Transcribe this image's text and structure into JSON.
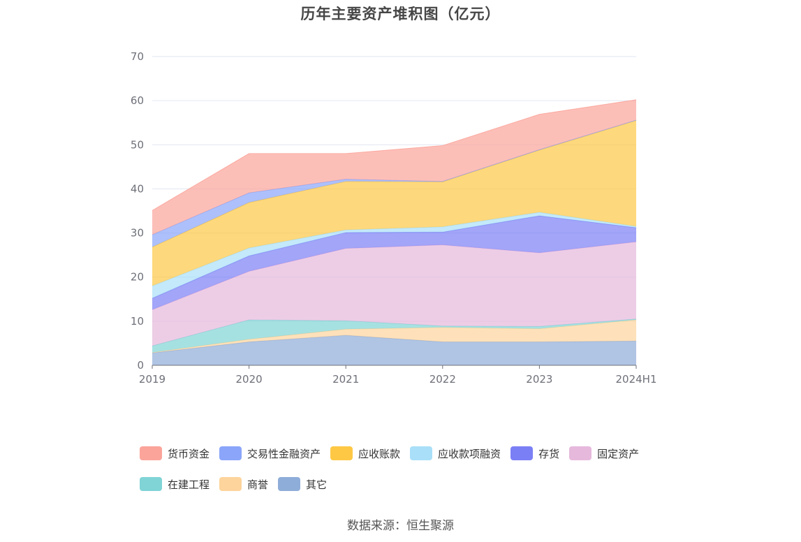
{
  "chart_data": {
    "type": "area",
    "stacked": true,
    "title": "历年主要资产堆积图（亿元）",
    "categories": [
      "2019",
      "2020",
      "2021",
      "2022",
      "2023",
      "2024H1"
    ],
    "ylim": [
      0,
      70
    ],
    "yticks": [
      0,
      10,
      20,
      30,
      40,
      50,
      60,
      70
    ],
    "grid": true,
    "legend_position": "bottom",
    "series": [
      {
        "name": "其它",
        "color": "#8fadd9",
        "values": [
          2.8,
          5.3,
          6.8,
          5.3,
          5.3,
          5.5
        ]
      },
      {
        "name": "商誉",
        "color": "#fdd49c",
        "values": [
          0.1,
          0.6,
          1.4,
          3.3,
          3.0,
          4.8
        ]
      },
      {
        "name": "在建工程",
        "color": "#80d4d6",
        "values": [
          1.5,
          4.4,
          1.9,
          0.3,
          0.5,
          0.2
        ]
      },
      {
        "name": "固定资产",
        "color": "#e6b8dc",
        "values": [
          8.2,
          11.0,
          16.4,
          18.4,
          16.7,
          17.5
        ]
      },
      {
        "name": "存货",
        "color": "#7b7ff5",
        "values": [
          2.6,
          3.5,
          3.6,
          2.9,
          8.4,
          3.2
        ]
      },
      {
        "name": "应收款项融资",
        "color": "#a9dff8",
        "values": [
          2.8,
          1.8,
          0.6,
          1.2,
          0.8,
          0.3
        ]
      },
      {
        "name": "应收账款",
        "color": "#fec844",
        "values": [
          8.8,
          10.3,
          11.0,
          10.2,
          14.1,
          24.0
        ]
      },
      {
        "name": "交易性金融资产",
        "color": "#8aa5f9",
        "values": [
          2.8,
          2.2,
          0.5,
          0.1,
          0.1,
          0.1
        ]
      },
      {
        "name": "货币资金",
        "color": "#fba49a",
        "values": [
          5.5,
          8.9,
          5.8,
          8.1,
          8.0,
          4.6
        ]
      }
    ],
    "legend_order": [
      "货币资金",
      "交易性金融资产",
      "应收账款",
      "应收款项融资",
      "存货",
      "固定资产",
      "在建工程",
      "商誉",
      "其它"
    ]
  },
  "source": "数据来源：恒生聚源"
}
